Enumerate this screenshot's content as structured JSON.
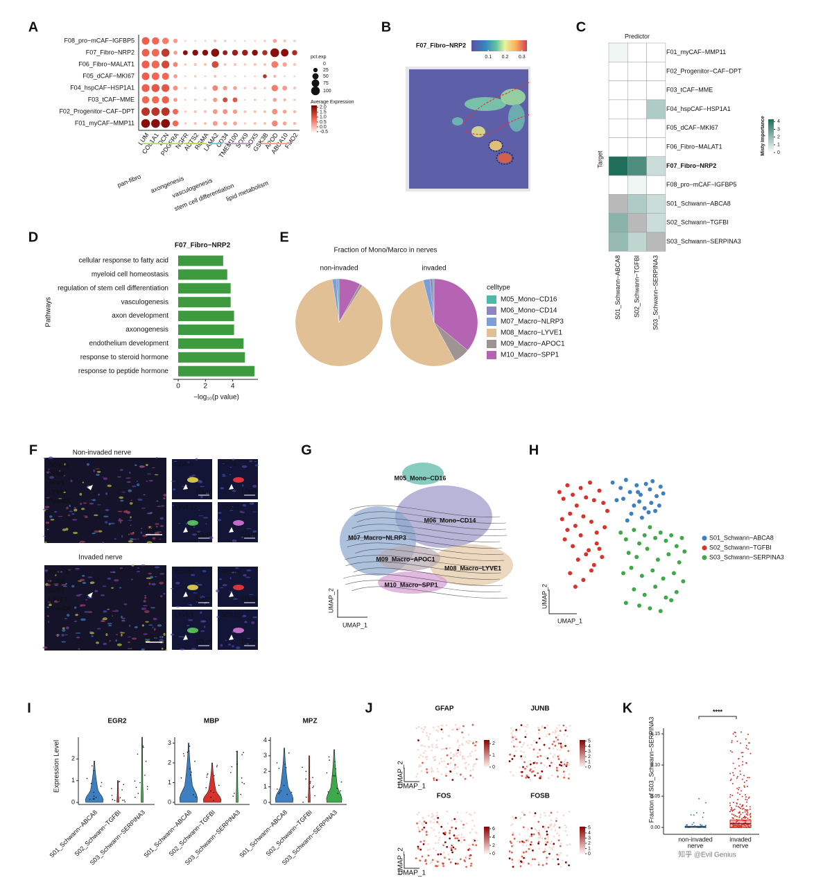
{
  "panel_labels": [
    "A",
    "B",
    "C",
    "D",
    "E",
    "F",
    "G",
    "H",
    "I",
    "J",
    "K"
  ],
  "watermark": "知乎 @Evil Genius",
  "spatial_b": {
    "title": "F07_Fibro−NRP2",
    "clim": [
      0,
      0.33
    ],
    "ticks": [
      0.1,
      0.2,
      0.3
    ]
  },
  "image_f": {
    "non_invaded_title": "Non-invaded nerve",
    "invaded_title": "Invaded nerve",
    "channels": [
      {
        "name": "SOX10",
        "color": "#e27ae0"
      },
      {
        "name": "CD68",
        "color": "#f2e24a"
      },
      {
        "name": "SPP1",
        "color": "#ff3b3b"
      },
      {
        "name": "LYVE1",
        "color": "#5fd35f"
      },
      {
        "name": "Pan-CK",
        "color": "#ffffff"
      }
    ],
    "insets": [
      [
        "CD68+",
        "SPP1",
        "LYVE1+",
        "SOX10"
      ],
      [
        "CD68+",
        "SPP1+",
        "LYVE1",
        "SOX10+"
      ]
    ],
    "scale_large": "50μm",
    "scale_small": "10μm"
  },
  "velocity_g": {
    "clusters": [
      "M05_Mono−CD16",
      "M06_Mono−CD14",
      "M07_Macro−NLRP3",
      "M09_Macro−APOC1",
      "M08_Macro−LYVE1",
      "M10_Macro−SPP1"
    ],
    "x_label": "UMAP_1",
    "y_label": "UMAP_2"
  },
  "feature_j": {
    "x_label": "UMAP_1",
    "y_label": "UMAP_2",
    "genes": [
      {
        "title": "GFAP",
        "clim": [
          0,
          2.3
        ],
        "ticks": [
          0,
          1,
          2
        ]
      },
      {
        "title": "JUNB",
        "clim": [
          0,
          5.2
        ],
        "ticks": [
          0,
          1,
          2,
          3,
          4,
          5
        ]
      },
      {
        "title": "FOS",
        "clim": [
          0,
          6.5
        ],
        "ticks": [
          0,
          2,
          4,
          6
        ]
      },
      {
        "title": "FOSB",
        "clim": [
          0,
          5.2
        ],
        "ticks": [
          0,
          1,
          2,
          3,
          4,
          5
        ]
      }
    ]
  },
  "chart_data": [
    {
      "type": "dot",
      "rows": [
        "F08_pro−mCAF−IGFBP5",
        "F07_Fibro−NRP2",
        "F06_Fibro−MALAT1",
        "F05_dCAF−MKI67",
        "F04_hspCAF−HSP1A1",
        "F03_tCAF−MME",
        "F02_Progenitor−CAF−DPT",
        "F01_myCAF−MMP11"
      ],
      "columns": [
        "LUM",
        "COL1A1",
        "DCN",
        "PDGFRA",
        "NGFR",
        "AUTS2",
        "RGMA",
        "LAMA2",
        "CD34",
        "TMEM100",
        "SOX9",
        "SOX5",
        "GSK3B",
        "APOD",
        "ABCA10",
        "FMO2"
      ],
      "pct": [
        [
          75,
          70,
          55,
          25,
          5,
          5,
          5,
          10,
          8,
          5,
          5,
          5,
          8,
          20,
          10,
          8
        ],
        [
          75,
          75,
          85,
          20,
          30,
          45,
          45,
          85,
          30,
          45,
          45,
          45,
          35,
          100,
          75,
          35
        ],
        [
          80,
          80,
          80,
          30,
          8,
          10,
          10,
          60,
          10,
          10,
          8,
          10,
          10,
          60,
          25,
          10
        ],
        [
          75,
          75,
          65,
          20,
          5,
          8,
          5,
          10,
          5,
          5,
          5,
          5,
          20,
          12,
          5,
          5
        ],
        [
          80,
          85,
          80,
          30,
          8,
          8,
          8,
          40,
          25,
          20,
          8,
          10,
          8,
          55,
          30,
          10
        ],
        [
          70,
          70,
          70,
          20,
          5,
          8,
          8,
          25,
          30,
          30,
          5,
          8,
          5,
          20,
          12,
          8
        ],
        [
          90,
          90,
          90,
          40,
          8,
          10,
          10,
          30,
          30,
          25,
          10,
          10,
          10,
          40,
          20,
          12
        ],
        [
          100,
          100,
          100,
          45,
          8,
          10,
          10,
          30,
          20,
          20,
          8,
          10,
          10,
          45,
          20,
          12
        ]
      ],
      "expr": [
        [
          0.9,
          0.8,
          0.6,
          0.3,
          -0.3,
          -0.3,
          -0.3,
          -0.1,
          -0.2,
          -0.3,
          -0.3,
          -0.3,
          -0.2,
          0.2,
          -0.1,
          -0.2
        ],
        [
          0.9,
          0.8,
          1.4,
          0.3,
          2.0,
          2.0,
          2.0,
          2.0,
          1.8,
          1.8,
          1.8,
          2.0,
          1.6,
          2.0,
          2.0,
          1.6
        ],
        [
          0.9,
          0.8,
          1.2,
          0.5,
          -0.2,
          -0.1,
          -0.1,
          1.2,
          -0.1,
          -0.1,
          -0.2,
          -0.1,
          -0.1,
          0.6,
          0.2,
          -0.1
        ],
        [
          0.9,
          0.8,
          0.8,
          0.3,
          -0.3,
          -0.2,
          -0.3,
          -0.1,
          -0.3,
          -0.3,
          -0.3,
          -0.3,
          1.5,
          0.0,
          -0.3,
          -0.3
        ],
        [
          0.9,
          1.0,
          1.0,
          0.4,
          -0.2,
          -0.2,
          -0.2,
          0.5,
          0.3,
          0.2,
          -0.2,
          -0.1,
          -0.2,
          0.6,
          0.3,
          -0.1
        ],
        [
          0.8,
          0.8,
          0.9,
          0.3,
          -0.3,
          -0.2,
          -0.2,
          0.3,
          1.2,
          1.0,
          -0.3,
          -0.2,
          -0.3,
          0.2,
          0.0,
          -0.2
        ],
        [
          1.5,
          1.5,
          1.5,
          0.8,
          -0.2,
          -0.1,
          -0.1,
          0.3,
          0.4,
          0.3,
          -0.1,
          -0.1,
          -0.1,
          0.4,
          0.2,
          0.0
        ],
        [
          2.0,
          2.0,
          2.0,
          0.8,
          -0.2,
          -0.1,
          -0.1,
          0.3,
          0.2,
          0.2,
          -0.2,
          -0.1,
          -0.1,
          0.5,
          0.2,
          0.0
        ]
      ],
      "size_title": "pct.exp",
      "size_ticks": [
        0,
        25,
        50,
        75,
        100
      ],
      "color_title": "Average Expression",
      "clim": [
        -0.5,
        2.2
      ],
      "color_ticks": [
        {
          "value": 2.0,
          "label": "2.0"
        },
        {
          "value": 1.5,
          "label": "1.5"
        },
        {
          "value": 1.0,
          "label": "1.0"
        },
        {
          "value": 0.5,
          "label": "0.5"
        },
        {
          "value": 0.0,
          "label": "0.0"
        },
        {
          "value": -0.5,
          "label": "-0.5"
        }
      ],
      "groups": [
        {
          "name": "pan-fibro",
          "color": "#b6d98a"
        },
        {
          "name": "axongenesis",
          "color": "#c3d84e"
        },
        {
          "name": "vasculogenesis",
          "color": "#7cc4df"
        },
        {
          "name": "stem cell differentiation",
          "color": "#c39bd1"
        },
        {
          "name": "lipid metabolism",
          "color": "#f0a98a"
        }
      ]
    },
    {
      "type": "heatmap",
      "x_title": "Predictor",
      "y_title": "Target",
      "targets": [
        "F01_myCAF−MMP11",
        "F02_Progenitor−CAF−DPT",
        "F03_tCAF−MME",
        "F04_hspCAF−HSP1A1",
        "F05_dCAF−MKI67",
        "F06_Fibro−MALAT1",
        "F07_Fibro−NRP2",
        "F08_pro−mCAF−IGFBP5",
        "S01_Schwann−ABCA8",
        "S02_Schwann−TGFBI",
        "S03_Schwann−SERPINA3"
      ],
      "predictors": [
        "S01_Schwann−ABCA8",
        "S02_Schwann−TGFBI",
        "S03_Schwann−SERPINA3"
      ],
      "values": [
        [
          0.3,
          0,
          0
        ],
        [
          0,
          0,
          0
        ],
        [
          0,
          0,
          0
        ],
        [
          0,
          0,
          1.5
        ],
        [
          0,
          0,
          0
        ],
        [
          0,
          0,
          0
        ],
        [
          4.2,
          3.3,
          1.0
        ],
        [
          0,
          0.3,
          0
        ],
        [
          null,
          1.5,
          1.0
        ],
        [
          2.2,
          null,
          1.0
        ],
        [
          2.0,
          1.2,
          null
        ]
      ],
      "color_title": "Misty Importance",
      "clim": [
        0,
        4.3
      ],
      "ticks": [
        0,
        1,
        2,
        3,
        4
      ]
    },
    {
      "type": "bar",
      "title": "F07_Fibro−NRP2",
      "categories": [
        "cellular response to fatty acid",
        "myeloid cell homeostasis",
        "regulation of stem cell differentiation",
        "vasculogenesis",
        "axon development",
        "axonogenesis",
        "endothelium development",
        "response to steroid hormone",
        "response to peptide hormone"
      ],
      "values": [
        3.3,
        3.6,
        3.85,
        3.85,
        4.1,
        4.1,
        4.8,
        4.9,
        5.6
      ],
      "color": "#3e9a3e",
      "xlim": [
        0,
        5.8
      ],
      "xticks": [
        0,
        2,
        4
      ],
      "x_label": "−log₁₀(p value)",
      "y_label": "Pathways"
    },
    {
      "type": "pie",
      "title": "Fraction of Mono/Marco in nerves",
      "legend_title": "celltype",
      "categories": [
        "M05_Mono−CD16",
        "M06_Mono−CD14",
        "M07_Macro−NLRP3",
        "M08_Macro−LYVE1",
        "M09_Macro−APOC1",
        "M10_Macro−SPP1"
      ],
      "colors": [
        "#4fb7a8",
        "#8c87c0",
        "#7c9ed8",
        "#e0c094",
        "#9d9493",
        "#b564b3"
      ],
      "series": [
        {
          "name": "non-invaded",
          "values": [
            0.5,
            0.5,
            1.5,
            88.5,
            1,
            8
          ]
        },
        {
          "name": "invaded",
          "values": [
            0.5,
            1,
            2.5,
            54,
            6,
            36
          ]
        }
      ]
    },
    {
      "type": "scatter",
      "x_label": "UMAP_1",
      "y_label": "UMAP_2",
      "xlim": [
        0,
        100
      ],
      "ylim": [
        0,
        100
      ],
      "series": [
        {
          "name": "S01_Schwann−ABCA8",
          "color": "#3d7fc1",
          "x": [
            42,
            48,
            52,
            55,
            60,
            63,
            67,
            70,
            72,
            75,
            78,
            80,
            45,
            50,
            58,
            62,
            66,
            71,
            74,
            56,
            64,
            69,
            53,
            77,
            61
          ],
          "y": [
            97,
            93,
            99,
            90,
            95,
            88,
            96,
            92,
            98,
            87,
            94,
            89,
            84,
            85,
            80,
            83,
            78,
            82,
            76,
            74,
            71,
            75,
            69,
            80,
            90
          ]
        },
        {
          "name": "S02_Schwann−TGFBI",
          "color": "#d7332c",
          "x": [
            2,
            5,
            8,
            12,
            15,
            18,
            22,
            25,
            28,
            32,
            35,
            38,
            4,
            10,
            14,
            20,
            26,
            30,
            36,
            6,
            12,
            18,
            24,
            30,
            16,
            22,
            28,
            34,
            10,
            20,
            26,
            14,
            8,
            32
          ],
          "y": [
            90,
            85,
            95,
            88,
            80,
            93,
            86,
            97,
            84,
            91,
            82,
            76,
            70,
            74,
            65,
            72,
            68,
            60,
            64,
            55,
            50,
            58,
            47,
            52,
            40,
            44,
            36,
            42,
            30,
            25,
            32,
            20,
            62,
            48
          ]
        },
        {
          "name": "S03_Schwann−SERPINA3",
          "color": "#3ea84a",
          "x": [
            48,
            52,
            58,
            62,
            66,
            70,
            74,
            78,
            82,
            86,
            90,
            94,
            96,
            54,
            60,
            68,
            76,
            84,
            92,
            50,
            56,
            64,
            72,
            80,
            88,
            95,
            58,
            66,
            74,
            82,
            90,
            52,
            62,
            70,
            86,
            78
          ],
          "y": [
            60,
            55,
            62,
            52,
            58,
            64,
            56,
            60,
            54,
            58,
            50,
            56,
            46,
            45,
            42,
            48,
            40,
            44,
            38,
            30,
            34,
            28,
            32,
            26,
            30,
            24,
            18,
            14,
            20,
            12,
            16,
            8,
            6,
            4,
            10,
            2
          ]
        }
      ]
    },
    {
      "type": "violin",
      "y_label": "Expression Level",
      "categories": [
        "S01_Schwann−ABCA8",
        "S02_Schwann−TGFBI",
        "S03_Schwann−SERPINA3"
      ],
      "colors": [
        "#3d7fc1",
        "#d7332c",
        "#3ea84a"
      ],
      "genes": [
        {
          "title": "EGR2",
          "values": [
            1.9,
            1.0,
            3.0
          ],
          "ylim": [
            0,
            3
          ],
          "yticks": [
            0,
            1,
            2
          ]
        },
        {
          "title": "MBP",
          "values": [
            3.0,
            2.0,
            2.6
          ],
          "ylim": [
            0,
            3.3
          ],
          "yticks": [
            0,
            1,
            2,
            3
          ]
        },
        {
          "title": "MPZ",
          "values": [
            3.5,
            3.0,
            3.4
          ],
          "ylim": [
            0,
            4.2
          ],
          "yticks": [
            0,
            1,
            2,
            3,
            4
          ]
        }
      ]
    },
    {
      "type": "box",
      "y_label": "Fraction of S03_Schwann−SERPINA3",
      "categories": [
        [
          "non-invaded",
          "nerve"
        ],
        [
          "invaded",
          "nerve"
        ]
      ],
      "colors": [
        "#3d7fc1",
        "#d7332c"
      ],
      "q1": [
        0,
        0
      ],
      "median": [
        0.001,
        0.006
      ],
      "q3": [
        0.002,
        0.012
      ],
      "ylim": [
        -0.011,
        0.159
      ],
      "yticks": [
        {
          "value": 0,
          "label": "0.00"
        },
        {
          "value": 0.05,
          "label": "0.05"
        },
        {
          "value": 0.1,
          "label": "0.10"
        },
        {
          "value": 0.15,
          "label": "0.15"
        }
      ],
      "annotation": "****"
    }
  ]
}
